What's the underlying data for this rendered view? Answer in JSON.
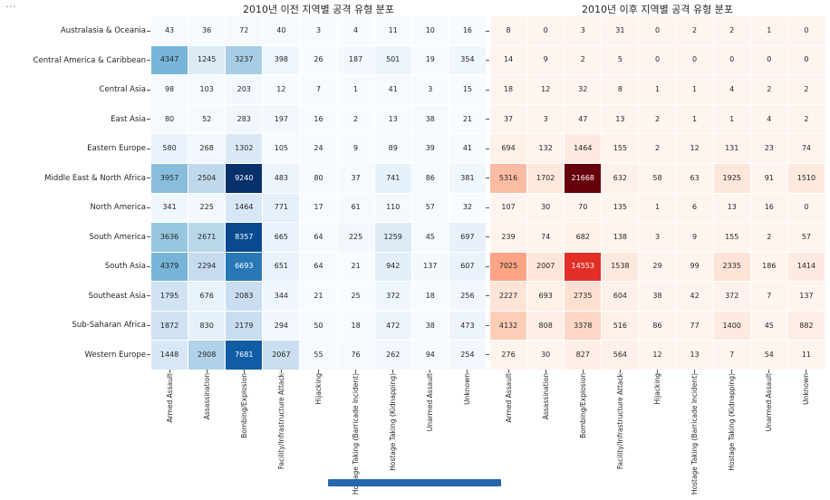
{
  "window": {
    "more_icon": "⋯"
  },
  "chart_data": [
    {
      "type": "heatmap",
      "title": "2010년 이전 지역별 공격 유형 분포",
      "colormap": "Blues",
      "show_row_labels": true,
      "rows": [
        "Australasia & Oceania",
        "Central America & Caribbean",
        "Central Asia",
        "East Asia",
        "Eastern Europe",
        "Middle East & North Africa",
        "North America",
        "South America",
        "South Asia",
        "Southeast Asia",
        "Sub-Saharan Africa",
        "Western Europe"
      ],
      "cols": [
        "Armed Assault",
        "Assassination",
        "Bombing/Explosion",
        "Facility/Infrastructure Attack",
        "Hijacking",
        "Hostage Taking (Barricade Incident)",
        "Hostage Taking (Kidnapping)",
        "Unarmed Assault",
        "Unknown"
      ],
      "vmin": 0,
      "values": [
        [
          43,
          36,
          72,
          40,
          3,
          4,
          11,
          10,
          16
        ],
        [
          4347,
          1245,
          3237,
          398,
          26,
          187,
          501,
          19,
          354
        ],
        [
          98,
          103,
          203,
          12,
          7,
          1,
          41,
          3,
          15
        ],
        [
          80,
          52,
          283,
          197,
          16,
          2,
          13,
          38,
          21
        ],
        [
          580,
          268,
          1302,
          105,
          24,
          9,
          89,
          39,
          41
        ],
        [
          3957,
          2504,
          9240,
          483,
          80,
          37,
          741,
          86,
          381
        ],
        [
          341,
          225,
          1464,
          771,
          17,
          61,
          110,
          57,
          32
        ],
        [
          3636,
          2671,
          8357,
          665,
          64,
          225,
          1259,
          45,
          697
        ],
        [
          4379,
          2294,
          6693,
          651,
          64,
          21,
          942,
          137,
          607
        ],
        [
          1795,
          676,
          2083,
          344,
          21,
          25,
          372,
          18,
          256
        ],
        [
          1872,
          830,
          2179,
          294,
          50,
          18,
          472,
          38,
          473
        ],
        [
          1448,
          2908,
          7681,
          2067,
          55,
          76,
          262,
          94,
          254
        ]
      ]
    },
    {
      "type": "heatmap",
      "title": "2010년 이후 지역별 공격 유형 분포",
      "colormap": "Reds",
      "show_row_labels": false,
      "rows": [
        "Australasia & Oceania",
        "Central America & Caribbean",
        "Central Asia",
        "East Asia",
        "Eastern Europe",
        "Middle East & North Africa",
        "North America",
        "South America",
        "South Asia",
        "Southeast Asia",
        "Sub-Saharan Africa",
        "Western Europe"
      ],
      "cols": [
        "Armed Assault",
        "Assassination",
        "Bombing/Explosion",
        "Facility/Infrastructure Attack",
        "Hijacking",
        "Hostage Taking (Barricade Incident)",
        "Hostage Taking (Kidnapping)",
        "Unarmed Assault",
        "Unknown"
      ],
      "vmin": 0,
      "values": [
        [
          8,
          0,
          3,
          31,
          0,
          2,
          2,
          1,
          0
        ],
        [
          14,
          9,
          2,
          5,
          0,
          0,
          0,
          0,
          0
        ],
        [
          18,
          12,
          32,
          8,
          1,
          1,
          4,
          2,
          2
        ],
        [
          37,
          3,
          47,
          13,
          2,
          1,
          1,
          4,
          2
        ],
        [
          694,
          132,
          1464,
          155,
          2,
          12,
          131,
          23,
          74
        ],
        [
          5316,
          1702,
          21668,
          632,
          58,
          63,
          1925,
          91,
          1510
        ],
        [
          107,
          30,
          70,
          135,
          1,
          6,
          13,
          16,
          0
        ],
        [
          239,
          74,
          682,
          138,
          3,
          9,
          155,
          2,
          57
        ],
        [
          7025,
          2007,
          14553,
          1538,
          29,
          99,
          2335,
          186,
          1414
        ],
        [
          2227,
          693,
          2735,
          604,
          38,
          42,
          372,
          7,
          137
        ],
        [
          4132,
          808,
          3378,
          516,
          86,
          77,
          1400,
          45,
          882
        ],
        [
          276,
          30,
          827,
          564,
          12,
          13,
          7,
          54,
          11
        ]
      ]
    }
  ],
  "colormaps": {
    "Blues": [
      "#f7fbff",
      "#deebf7",
      "#c6dbef",
      "#9ecae1",
      "#6baed6",
      "#4292c6",
      "#2171b5",
      "#08519c",
      "#08306b"
    ],
    "Reds": [
      "#fff5f0",
      "#fee0d2",
      "#fcbba1",
      "#fc9272",
      "#fb6a4a",
      "#ef3b2c",
      "#cb181d",
      "#a50f15",
      "#67000d"
    ]
  },
  "text_colors": {
    "dark": "#262626",
    "light": "#ffffff"
  },
  "bottom_bar": {
    "color": "#2765ad"
  }
}
